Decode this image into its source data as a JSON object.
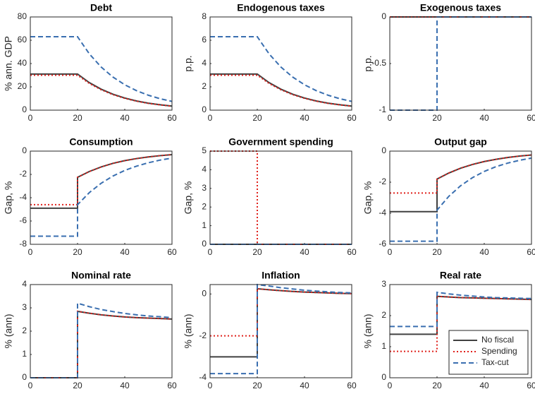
{
  "chart_data": [
    {
      "type": "line",
      "title": "Debt",
      "ylabel": "% ann. GDP",
      "x": [
        0,
        20,
        20,
        25,
        30,
        35,
        40,
        45,
        50,
        55,
        60
      ],
      "xlim": [
        0,
        60
      ],
      "xticks": [
        0,
        20,
        40,
        60
      ],
      "ylim": [
        0,
        80
      ],
      "yticks": [
        0,
        20,
        40,
        60,
        80
      ],
      "series": [
        {
          "color": "#404040",
          "dash": "solid",
          "values": [
            31,
            31,
            31,
            23.6,
            18.0,
            13.7,
            10.4,
            7.9,
            6.0,
            4.6,
            3.5
          ]
        },
        {
          "color": "#e0201b",
          "dash": "dotted",
          "values": [
            30,
            30,
            30,
            22.9,
            17.5,
            13.3,
            10.1,
            7.7,
            5.8,
            4.5,
            3.4
          ]
        },
        {
          "color": "#3a6fb0",
          "dash": "dashed",
          "values": [
            63,
            63,
            63,
            48.3,
            37.0,
            28.4,
            21.8,
            16.7,
            12.8,
            9.8,
            7.5
          ]
        }
      ]
    },
    {
      "type": "line",
      "title": "Endogenous taxes",
      "ylabel": "p.p.",
      "x": [
        0,
        20,
        20,
        25,
        30,
        35,
        40,
        45,
        50,
        55,
        60
      ],
      "xlim": [
        0,
        60
      ],
      "xticks": [
        0,
        20,
        40,
        60
      ],
      "ylim": [
        0,
        8
      ],
      "yticks": [
        0,
        2,
        4,
        6,
        8
      ],
      "series": [
        {
          "color": "#404040",
          "dash": "solid",
          "values": [
            3.1,
            3.1,
            3.1,
            2.36,
            1.8,
            1.37,
            1.04,
            0.79,
            0.6,
            0.46,
            0.35
          ]
        },
        {
          "color": "#e0201b",
          "dash": "dotted",
          "values": [
            3.0,
            3.0,
            3.0,
            2.29,
            1.75,
            1.33,
            1.01,
            0.77,
            0.58,
            0.45,
            0.34
          ]
        },
        {
          "color": "#3a6fb0",
          "dash": "dashed",
          "values": [
            6.3,
            6.3,
            6.3,
            4.83,
            3.7,
            2.84,
            2.18,
            1.67,
            1.28,
            0.98,
            0.75
          ]
        }
      ]
    },
    {
      "type": "line",
      "title": "Exogenous taxes",
      "ylabel": "p.p.",
      "x": [
        0,
        20,
        20,
        25,
        30,
        35,
        40,
        45,
        50,
        55,
        60
      ],
      "xlim": [
        0,
        60
      ],
      "xticks": [
        0,
        20,
        40,
        60
      ],
      "ylim": [
        -1,
        0
      ],
      "yticks": [
        -1,
        -0.5,
        0
      ],
      "series": [
        {
          "color": "#404040",
          "dash": "solid",
          "values": [
            0,
            0,
            0,
            0,
            0,
            0,
            0,
            0,
            0,
            0,
            0
          ]
        },
        {
          "color": "#e0201b",
          "dash": "dotted",
          "values": [
            0,
            0,
            0,
            0,
            0,
            0,
            0,
            0,
            0,
            0,
            0
          ]
        },
        {
          "color": "#3a6fb0",
          "dash": "dashed",
          "values": [
            -1,
            -1,
            0,
            0,
            0,
            0,
            0,
            0,
            0,
            0,
            0
          ]
        }
      ]
    },
    {
      "type": "line",
      "title": "Consumption",
      "ylabel": "Gap, %",
      "x": [
        0,
        20,
        20,
        25,
        30,
        35,
        40,
        45,
        50,
        55,
        60
      ],
      "xlim": [
        0,
        60
      ],
      "xticks": [
        0,
        20,
        40,
        60
      ],
      "ylim": [
        -8,
        0
      ],
      "yticks": [
        -8,
        -6,
        -4,
        -2,
        0
      ],
      "series": [
        {
          "color": "#404040",
          "dash": "solid",
          "values": [
            -4.9,
            -4.9,
            -2.25,
            -1.75,
            -1.36,
            -1.05,
            -0.82,
            -0.64,
            -0.5,
            -0.39,
            -0.3
          ]
        },
        {
          "color": "#e0201b",
          "dash": "dotted",
          "values": [
            -4.6,
            -4.6,
            -2.25,
            -1.75,
            -1.36,
            -1.05,
            -0.82,
            -0.64,
            -0.5,
            -0.39,
            -0.3
          ]
        },
        {
          "color": "#3a6fb0",
          "dash": "dashed",
          "values": [
            -7.3,
            -7.3,
            -4.6,
            -3.56,
            -2.76,
            -2.14,
            -1.66,
            -1.29,
            -1.0,
            -0.77,
            -0.6
          ]
        }
      ]
    },
    {
      "type": "line",
      "title": "Government spending",
      "ylabel": "Gap, %",
      "x": [
        0,
        20,
        20,
        25,
        30,
        35,
        40,
        45,
        50,
        55,
        60
      ],
      "xlim": [
        0,
        60
      ],
      "xticks": [
        0,
        20,
        40,
        60
      ],
      "ylim": [
        0,
        5
      ],
      "yticks": [
        0,
        1,
        2,
        3,
        4,
        5
      ],
      "series": [
        {
          "color": "#404040",
          "dash": "solid",
          "values": [
            0,
            0,
            0,
            0,
            0,
            0,
            0,
            0,
            0,
            0,
            0
          ]
        },
        {
          "color": "#e0201b",
          "dash": "dotted",
          "values": [
            5,
            5,
            0,
            0,
            0,
            0,
            0,
            0,
            0,
            0,
            0
          ]
        },
        {
          "color": "#3a6fb0",
          "dash": "dashed",
          "values": [
            0,
            0,
            0,
            0,
            0,
            0,
            0,
            0,
            0,
            0,
            0
          ]
        }
      ]
    },
    {
      "type": "line",
      "title": "Output gap",
      "ylabel": "Gap, %",
      "x": [
        0,
        20,
        20,
        25,
        30,
        35,
        40,
        45,
        50,
        55,
        60
      ],
      "xlim": [
        0,
        60
      ],
      "xticks": [
        0,
        20,
        40,
        60
      ],
      "ylim": [
        -6,
        0
      ],
      "yticks": [
        -6,
        -4,
        -2,
        0
      ],
      "series": [
        {
          "color": "#404040",
          "dash": "solid",
          "values": [
            -3.9,
            -3.9,
            -1.8,
            -1.41,
            -1.1,
            -0.86,
            -0.67,
            -0.53,
            -0.41,
            -0.32,
            -0.25
          ]
        },
        {
          "color": "#e0201b",
          "dash": "dotted",
          "values": [
            -2.7,
            -2.7,
            -1.8,
            -1.41,
            -1.1,
            -0.86,
            -0.67,
            -0.53,
            -0.41,
            -0.32,
            -0.25
          ]
        },
        {
          "color": "#3a6fb0",
          "dash": "dashed",
          "values": [
            -5.8,
            -5.8,
            -3.8,
            -2.91,
            -2.23,
            -1.71,
            -1.31,
            -1.0,
            -0.77,
            -0.59,
            -0.45
          ]
        }
      ]
    },
    {
      "type": "line",
      "title": "Nominal rate",
      "ylabel": "% (ann)",
      "x": [
        0,
        20,
        20,
        25,
        30,
        35,
        40,
        45,
        50,
        55,
        60
      ],
      "xlim": [
        0,
        60
      ],
      "xticks": [
        0,
        20,
        40,
        60
      ],
      "ylim": [
        0,
        4
      ],
      "yticks": [
        0,
        1,
        2,
        3,
        4
      ],
      "series": [
        {
          "color": "#404040",
          "dash": "solid",
          "values": [
            0,
            0,
            2.85,
            2.77,
            2.7,
            2.65,
            2.61,
            2.58,
            2.56,
            2.54,
            2.52
          ]
        },
        {
          "color": "#e0201b",
          "dash": "dotted",
          "values": [
            0,
            0,
            2.85,
            2.77,
            2.7,
            2.65,
            2.61,
            2.58,
            2.56,
            2.54,
            2.52
          ]
        },
        {
          "color": "#3a6fb0",
          "dash": "dashed",
          "values": [
            0,
            0,
            3.2,
            3.05,
            2.93,
            2.84,
            2.76,
            2.7,
            2.65,
            2.62,
            2.58
          ]
        }
      ]
    },
    {
      "type": "line",
      "title": "Inflation",
      "ylabel": "% (ann)",
      "x": [
        0,
        20,
        20,
        25,
        30,
        35,
        40,
        45,
        50,
        55,
        60
      ],
      "xlim": [
        0,
        60
      ],
      "xticks": [
        0,
        20,
        40,
        60
      ],
      "ylim": [
        -4,
        0.45
      ],
      "yticks": [
        -4,
        -2,
        0
      ],
      "series": [
        {
          "color": "#404040",
          "dash": "solid",
          "values": [
            -3,
            -3,
            0.25,
            0.2,
            0.16,
            0.12,
            0.09,
            0.07,
            0.05,
            0.03,
            0.02
          ]
        },
        {
          "color": "#e0201b",
          "dash": "dotted",
          "values": [
            -2,
            -2,
            0.25,
            0.2,
            0.16,
            0.12,
            0.09,
            0.07,
            0.05,
            0.03,
            0.02
          ]
        },
        {
          "color": "#3a6fb0",
          "dash": "dashed",
          "values": [
            -3.8,
            -3.8,
            0.45,
            0.38,
            0.3,
            0.24,
            0.18,
            0.14,
            0.1,
            0.07,
            0.05
          ]
        }
      ]
    },
    {
      "type": "line",
      "title": "Real rate",
      "ylabel": "% (ann)",
      "x": [
        0,
        20,
        20,
        25,
        30,
        35,
        40,
        45,
        50,
        55,
        60
      ],
      "xlim": [
        0,
        60
      ],
      "xticks": [
        0,
        20,
        40,
        60
      ],
      "ylim": [
        0,
        3
      ],
      "yticks": [
        0,
        1,
        2,
        3
      ],
      "legend": "lower right",
      "series": [
        {
          "name": "No fiscal",
          "color": "#404040",
          "dash": "solid",
          "values": [
            1.4,
            1.4,
            2.62,
            2.6,
            2.58,
            2.57,
            2.56,
            2.55,
            2.54,
            2.53,
            2.52
          ]
        },
        {
          "name": "Spending",
          "color": "#e0201b",
          "dash": "dotted",
          "values": [
            0.85,
            0.85,
            2.62,
            2.6,
            2.58,
            2.57,
            2.56,
            2.55,
            2.54,
            2.53,
            2.52
          ]
        },
        {
          "name": "Tax-cut",
          "color": "#3a6fb0",
          "dash": "dashed",
          "values": [
            1.65,
            1.65,
            2.75,
            2.7,
            2.66,
            2.63,
            2.6,
            2.58,
            2.57,
            2.56,
            2.55
          ]
        }
      ]
    }
  ]
}
